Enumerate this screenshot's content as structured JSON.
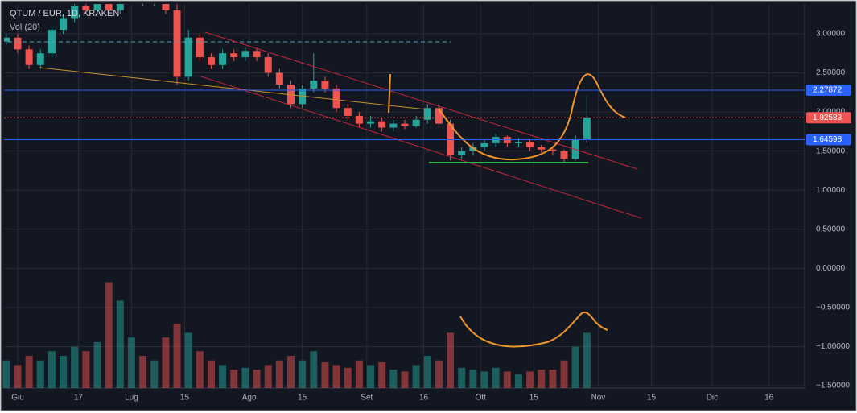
{
  "chart_data": {
    "type": "candlestick",
    "title": "QTUM / EUR, 1D, KRAKEN",
    "subtitle": "Vol (20)",
    "x": [
      -3,
      0,
      3,
      6,
      9,
      12,
      15,
      18,
      21,
      24,
      27,
      30,
      33,
      36,
      39,
      42,
      45,
      48,
      51,
      54,
      57,
      60,
      63,
      66,
      69,
      72,
      75,
      78,
      81,
      84,
      87,
      90,
      93,
      96,
      99,
      102,
      105,
      108,
      111,
      114,
      117,
      120,
      123,
      126,
      129,
      132,
      135,
      138,
      141,
      144,
      147,
      150
    ],
    "open": [
      2.9,
      2.95,
      2.8,
      2.6,
      2.75,
      3.05,
      3.2,
      3.35,
      3.3,
      3.4,
      3.3,
      3.45,
      3.5,
      3.4,
      3.45,
      3.3,
      2.45,
      2.95,
      2.7,
      2.6,
      2.75,
      2.7,
      2.78,
      2.7,
      2.5,
      2.35,
      2.1,
      2.3,
      2.4,
      2.3,
      2.05,
      1.95,
      1.85,
      1.88,
      1.8,
      1.85,
      1.82,
      1.9,
      2.05,
      1.85,
      1.45,
      1.5,
      1.55,
      1.6,
      1.68,
      1.6,
      1.62,
      1.55,
      1.52,
      1.5,
      1.4,
      1.65
    ],
    "high": [
      3.0,
      3.0,
      2.85,
      2.8,
      3.1,
      3.25,
      3.4,
      3.45,
      3.45,
      3.55,
      3.5,
      3.6,
      3.55,
      3.5,
      3.5,
      3.4,
      3.05,
      3.0,
      2.75,
      2.8,
      2.8,
      2.82,
      2.82,
      2.75,
      2.55,
      2.4,
      2.35,
      2.75,
      2.45,
      2.35,
      2.1,
      2.0,
      1.95,
      1.92,
      1.9,
      1.9,
      1.95,
      2.1,
      2.08,
      1.9,
      1.55,
      1.6,
      1.65,
      1.72,
      1.7,
      1.66,
      1.65,
      1.58,
      1.56,
      1.52,
      1.7,
      2.2
    ],
    "low": [
      2.85,
      2.75,
      2.55,
      2.55,
      2.7,
      3.0,
      3.15,
      3.25,
      3.25,
      3.25,
      3.25,
      3.4,
      3.35,
      3.35,
      3.25,
      2.35,
      2.4,
      2.65,
      2.55,
      2.55,
      2.65,
      2.65,
      2.65,
      2.45,
      2.3,
      2.05,
      2.05,
      2.25,
      2.25,
      2.0,
      1.9,
      1.8,
      1.8,
      1.75,
      1.75,
      1.78,
      1.8,
      1.85,
      1.8,
      1.38,
      1.4,
      1.45,
      1.5,
      1.55,
      1.55,
      1.55,
      1.5,
      1.48,
      1.45,
      1.35,
      1.38,
      1.6
    ],
    "close": [
      2.95,
      2.8,
      2.6,
      2.75,
      3.05,
      3.2,
      3.35,
      3.3,
      3.4,
      3.3,
      3.45,
      3.5,
      3.4,
      3.45,
      3.3,
      2.45,
      2.95,
      2.7,
      2.6,
      2.75,
      2.7,
      2.78,
      2.7,
      2.5,
      2.35,
      2.1,
      2.3,
      2.4,
      2.3,
      2.05,
      1.95,
      1.85,
      1.88,
      1.8,
      1.85,
      1.82,
      1.9,
      2.05,
      1.85,
      1.45,
      1.5,
      1.55,
      1.6,
      1.68,
      1.6,
      1.62,
      1.55,
      1.52,
      1.5,
      1.4,
      1.65,
      1.93
    ],
    "volume": [
      30,
      25,
      35,
      30,
      40,
      35,
      45,
      40,
      50,
      115,
      95,
      55,
      35,
      30,
      55,
      70,
      60,
      40,
      30,
      25,
      20,
      22,
      20,
      25,
      30,
      35,
      30,
      40,
      28,
      25,
      22,
      30,
      25,
      28,
      20,
      18,
      25,
      35,
      30,
      60,
      22,
      20,
      18,
      22,
      18,
      15,
      18,
      20,
      20,
      30,
      45,
      60
    ],
    "up_color": "#26a69a",
    "down_color": "#ef5350",
    "xlim": [
      -3.6,
      207.4
    ],
    "xticks": [
      {
        "value": 0,
        "label": "Giu"
      },
      17,
      {
        "value": 30,
        "label": "Lug"
      },
      15,
      {
        "value": 61,
        "label": "Ago"
      },
      15,
      {
        "value": 92,
        "label": "Set"
      },
      16,
      {
        "value": 122,
        "label": "Ott"
      },
      15,
      {
        "value": 153,
        "label": "Nov"
      },
      15,
      {
        "value": 183,
        "label": "Dic"
      },
      16
    ],
    "xtick_pos": [
      0,
      16,
      30,
      44,
      61,
      75,
      92,
      107,
      122,
      136,
      153,
      167,
      183,
      198
    ],
    "ylim": [
      -1.53,
      3.38
    ],
    "yticks": [
      {
        "value": 3,
        "label": "3.00000"
      },
      {
        "value": 2.5,
        "label": "2.50000"
      },
      {
        "value": 2,
        "label": "2.00000"
      },
      {
        "value": 1.5,
        "label": "1.50000"
      },
      {
        "value": 1,
        "label": "1.00000"
      },
      {
        "value": 0.5,
        "label": "0.50000"
      },
      {
        "value": 0,
        "label": "0.00000"
      },
      {
        "value": -0.5,
        "label": "−0.50000"
      },
      {
        "value": -1,
        "label": "−1.00000"
      },
      {
        "value": -1.5,
        "label": "−1.50000"
      }
    ],
    "y2lim": [
      0,
      105
    ],
    "grid": true,
    "price_lines": [
      {
        "value": 2.27872,
        "color": "#2962ff"
      },
      {
        "value": 1.92583,
        "color": "#ef5350"
      },
      {
        "value": 1.64598,
        "color": "#2962ff"
      }
    ]
  }
}
